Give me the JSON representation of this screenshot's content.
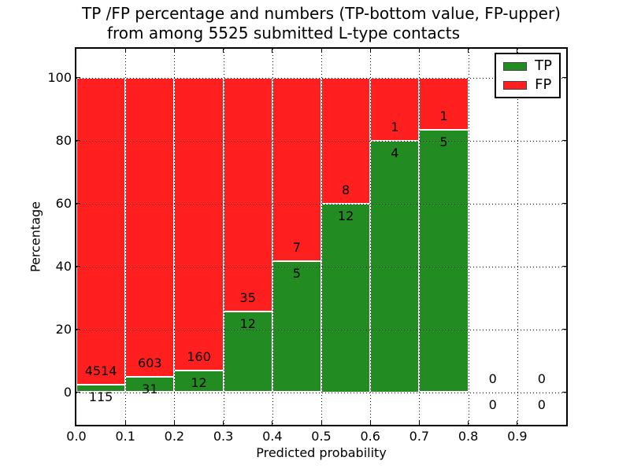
{
  "title": {
    "line1": "TP /FP percentage and numbers (TP-bottom value, FP-upper)",
    "line2": "from among 5525 submitted L-type contacts"
  },
  "axes": {
    "xlabel": "Predicted probability",
    "ylabel": "Percentage",
    "xticks": [
      "0.0",
      "0.1",
      "0.2",
      "0.3",
      "0.4",
      "0.5",
      "0.6",
      "0.7",
      "0.8",
      "0.9"
    ],
    "yticks": [
      "0",
      "20",
      "40",
      "60",
      "80",
      "100"
    ]
  },
  "legend": {
    "items": [
      {
        "label": "TP",
        "color": "#228b22"
      },
      {
        "label": "FP",
        "color": "#ff1f1f"
      }
    ]
  },
  "chart_data": {
    "type": "bar",
    "stacked": true,
    "title": "TP /FP percentage and numbers (TP-bottom value, FP-upper) from among 5525 submitted L-type contacts",
    "xlabel": "Predicted probability",
    "ylabel": "Percentage",
    "bin_width": 0.1,
    "bin_starts": [
      0.0,
      0.1,
      0.2,
      0.3,
      0.4,
      0.5,
      0.6,
      0.7,
      0.8,
      0.9
    ],
    "series": [
      {
        "name": "TP",
        "color": "#228b22",
        "counts": [
          115,
          31,
          12,
          12,
          5,
          12,
          4,
          5,
          0,
          0
        ]
      },
      {
        "name": "FP",
        "color": "#ff1f1f",
        "counts": [
          4514,
          603,
          160,
          35,
          7,
          8,
          1,
          1,
          0,
          0
        ]
      }
    ],
    "tp_percent": [
      2.48,
      4.89,
      6.98,
      25.53,
      41.67,
      60.0,
      80.0,
      83.33,
      0.0,
      0.0
    ],
    "bar_total_percent": 100,
    "xlim": [
      0.0,
      1.0
    ],
    "ylim": [
      -10.4,
      109.1
    ],
    "grid": true,
    "legend_position": "upper right"
  }
}
